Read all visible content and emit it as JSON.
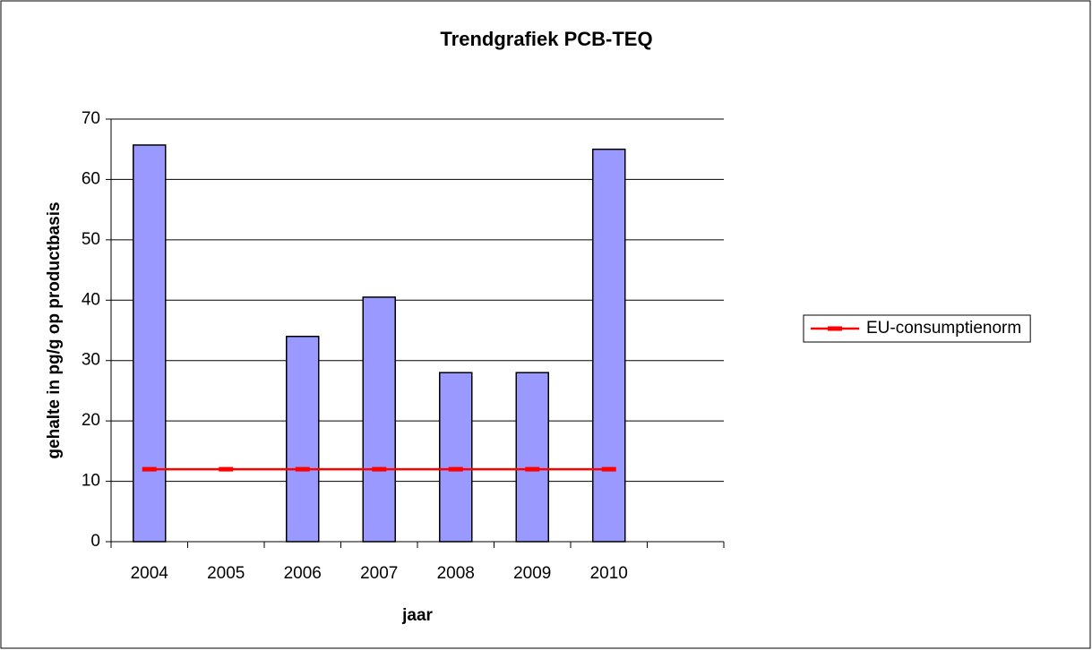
{
  "chart_data": {
    "type": "combo",
    "title": "Trendgrafiek PCB-TEQ",
    "x_label": "jaar",
    "y_label": "gehalte in pg/g op productbasis",
    "categories": [
      "2004",
      "2005",
      "2006",
      "2007",
      "2008",
      "2009",
      "2010",
      null
    ],
    "series": [
      {
        "type": "bar",
        "color": "#9999ff",
        "values": [
          65.7,
          null,
          34,
          40.5,
          28,
          28,
          65,
          null
        ]
      },
      {
        "type": "line",
        "name": "EU-consumptienorm",
        "color": "#ff0000",
        "values": [
          12,
          12,
          12,
          12,
          12,
          12,
          12,
          null
        ]
      }
    ],
    "ylim": [
      0,
      70
    ],
    "yticks": [
      0,
      10,
      20,
      30,
      40,
      50,
      60,
      70
    ],
    "grid": true,
    "legend": "right"
  }
}
